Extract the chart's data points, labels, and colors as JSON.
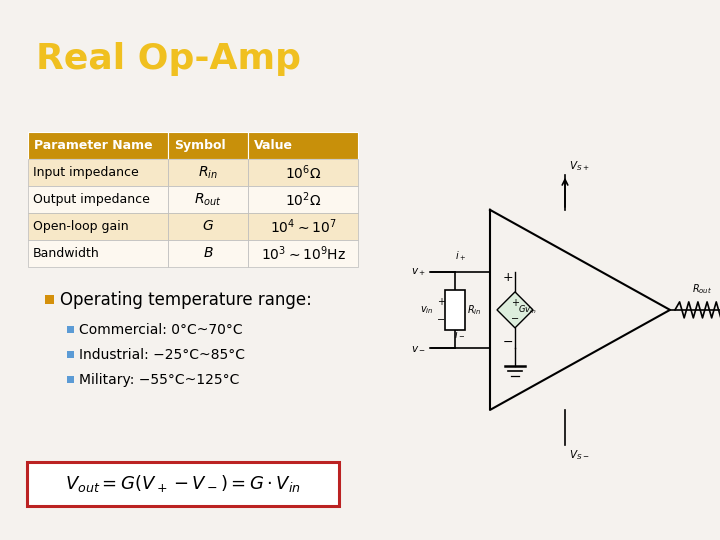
{
  "title": "Real Op-Amp",
  "title_color": "#F0C020",
  "title_bg_color": "#111111",
  "slide_bg_color": "#f5f2ee",
  "table_header_bg": "#C8900A",
  "table_header_text": "#ffffff",
  "table_row_bg1": "#f7e8c8",
  "table_row_bg2": "#fdf8f0",
  "table_border_color": "#bbbbbb",
  "table_cols": [
    "Parameter Name",
    "Symbol",
    "Value"
  ],
  "table_rows": [
    [
      "Input impedance",
      "$R_{in}$",
      "$10^6\\Omega$"
    ],
    [
      "Output impedance",
      "$R_{out}$",
      "$10^2\\Omega$"
    ],
    [
      "Open-loop gain",
      "$G$",
      "$10^4{\\sim}10^7$"
    ],
    [
      "Bandwidth",
      "$B$",
      "$10^3{\\sim}10^9$Hz"
    ]
  ],
  "bullet_color": "#D4900A",
  "sub_bullet_color": "#5b9bd5",
  "bullet_text": "Operating temperature range:",
  "sub_bullets": [
    "Commercial: 0°C~70°C",
    "Industrial: −25°C~85°C",
    "Military: −55°C~125°C"
  ],
  "formula_box_color": "#bb2222",
  "formula_text": "$V_{out} = G(V_+ - V_-) = G \\cdot V_{in}$",
  "font_size_title": 26,
  "font_size_table_header": 9,
  "font_size_table_body": 9,
  "font_size_bullet": 12,
  "font_size_sub_bullet": 10,
  "font_size_formula": 12
}
